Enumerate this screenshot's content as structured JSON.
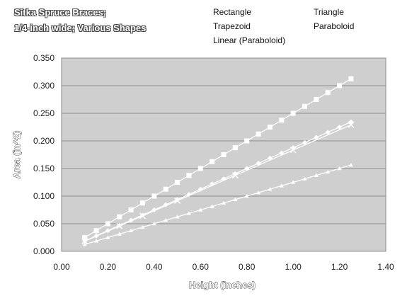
{
  "title_lines": [
    "Sitka Spruce Braces;",
    "1/4-inch wide; Various Shapes"
  ],
  "legend": [
    "Rectangle",
    "Triangle",
    "Trapezoid",
    "Paraboloid",
    "Linear (Paraboloid)"
  ],
  "chart_data": {
    "type": "scatter",
    "xlabel": "Height (inches)",
    "ylabel": "Area (in^2)",
    "xlim": [
      0,
      1.4
    ],
    "ylim": [
      0,
      0.35
    ],
    "x_ticks": [
      "0.00",
      "0.20",
      "0.40",
      "0.60",
      "0.80",
      "1.00",
      "1.20",
      "1.40"
    ],
    "y_ticks": [
      "0.000",
      "0.050",
      "0.100",
      "0.150",
      "0.200",
      "0.250",
      "0.300",
      "0.350"
    ],
    "grid": true,
    "plot_background": "#cfcfcf",
    "series_color": "#ffffff",
    "legend_position": "top-right",
    "x": [
      0.1,
      0.15,
      0.2,
      0.25,
      0.3,
      0.35,
      0.4,
      0.45,
      0.5,
      0.55,
      0.6,
      0.65,
      0.7,
      0.75,
      0.8,
      0.85,
      0.9,
      0.95,
      1.0,
      1.05,
      1.1,
      1.15,
      1.2,
      1.25
    ],
    "series": [
      {
        "name": "Rectangle",
        "marker": "square",
        "values": [
          0.025,
          0.0375,
          0.05,
          0.0625,
          0.075,
          0.0875,
          0.1,
          0.1125,
          0.125,
          0.1375,
          0.15,
          0.1625,
          0.175,
          0.1875,
          0.2,
          0.2125,
          0.225,
          0.2375,
          0.25,
          0.2625,
          0.275,
          0.2875,
          0.3,
          0.3125
        ]
      },
      {
        "name": "Triangle",
        "marker": "triangle",
        "values": [
          0.0125,
          0.01875,
          0.025,
          0.03125,
          0.0375,
          0.04375,
          0.05,
          0.05625,
          0.0625,
          0.06875,
          0.075,
          0.08125,
          0.0875,
          0.09375,
          0.1,
          0.10625,
          0.1125,
          0.11875,
          0.125,
          0.13125,
          0.1375,
          0.14375,
          0.15,
          0.15625
        ]
      },
      {
        "name": "Trapezoid",
        "marker": "diamond",
        "values": [
          0.0188,
          0.0281,
          0.0375,
          0.0469,
          0.0563,
          0.0656,
          0.075,
          0.0844,
          0.0938,
          0.1031,
          0.1125,
          0.1219,
          0.1313,
          0.1406,
          0.15,
          0.1594,
          0.1688,
          0.1781,
          0.1875,
          0.1969,
          0.2063,
          0.2156,
          0.225,
          0.2344
        ]
      },
      {
        "name": "Paraboloid",
        "marker": "x",
        "x": [
          0.1,
          0.25,
          0.35,
          0.5,
          0.75,
          1.0,
          1.25
        ],
        "values": [
          0.0183,
          0.0458,
          0.0642,
          0.0917,
          0.1375,
          0.1833,
          0.2292
        ]
      },
      {
        "name": "Linear (Paraboloid)",
        "marker": "none",
        "line": true,
        "x": [
          0.1,
          1.25
        ],
        "values": [
          0.0183,
          0.2292
        ]
      }
    ]
  }
}
